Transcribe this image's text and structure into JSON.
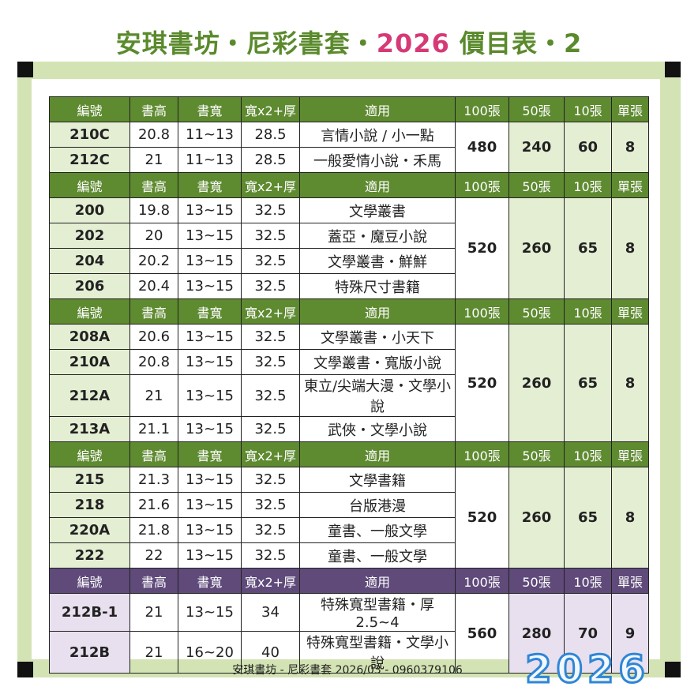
{
  "title": {
    "part1": "安琪書坊・尼彩書套・",
    "year": "2026",
    "part2": " 價目表・2"
  },
  "headers": [
    "編號",
    "書高",
    "書寬",
    "寬x2+厚",
    "適用",
    "100張",
    "50張",
    "10張",
    "單張"
  ],
  "groups": [
    {
      "theme": "green",
      "rows": [
        {
          "code": "210C",
          "h": "20.8",
          "w": "11~13",
          "wx": "28.5",
          "use": "言情小說 / 小一點"
        },
        {
          "code": "212C",
          "h": "21",
          "w": "11~13",
          "wx": "28.5",
          "use": "一般愛情小說・禾馬"
        }
      ],
      "p100": "480",
      "p50": "240",
      "p10": "60",
      "p1": "8"
    },
    {
      "theme": "green",
      "rows": [
        {
          "code": "200",
          "h": "19.8",
          "w": "13~15",
          "wx": "32.5",
          "use": "文學叢書"
        },
        {
          "code": "202",
          "h": "20",
          "w": "13~15",
          "wx": "32.5",
          "use": "蓋亞・魔豆小說"
        },
        {
          "code": "204",
          "h": "20.2",
          "w": "13~15",
          "wx": "32.5",
          "use": "文學叢書・鮮鮮"
        },
        {
          "code": "206",
          "h": "20.4",
          "w": "13~15",
          "wx": "32.5",
          "use": "特殊尺寸書籍"
        }
      ],
      "p100": "520",
      "p50": "260",
      "p10": "65",
      "p1": "8"
    },
    {
      "theme": "green",
      "rows": [
        {
          "code": "208A",
          "h": "20.6",
          "w": "13~15",
          "wx": "32.5",
          "use": "文學叢書・小天下"
        },
        {
          "code": "210A",
          "h": "20.8",
          "w": "13~15",
          "wx": "32.5",
          "use": "文學叢書・寬版小說"
        },
        {
          "code": "212A",
          "h": "21",
          "w": "13~15",
          "wx": "32.5",
          "use": "東立/尖端大漫・文學小說"
        },
        {
          "code": "213A",
          "h": "21.1",
          "w": "13~15",
          "wx": "32.5",
          "use": "武俠・文學小說"
        }
      ],
      "p100": "520",
      "p50": "260",
      "p10": "65",
      "p1": "8"
    },
    {
      "theme": "green",
      "rows": [
        {
          "code": "215",
          "h": "21.3",
          "w": "13~15",
          "wx": "32.5",
          "use": "文學書籍"
        },
        {
          "code": "218",
          "h": "21.6",
          "w": "13~15",
          "wx": "32.5",
          "use": "台版港漫"
        },
        {
          "code": "220A",
          "h": "21.8",
          "w": "13~15",
          "wx": "32.5",
          "use": "童書、一般文學"
        },
        {
          "code": "222",
          "h": "22",
          "w": "13~15",
          "wx": "32.5",
          "use": "童書、一般文學"
        }
      ],
      "p100": "520",
      "p50": "260",
      "p10": "65",
      "p1": "8"
    },
    {
      "theme": "purple",
      "rows": [
        {
          "code": "212B-1",
          "h": "21",
          "w": "13~15",
          "wx": "34",
          "use": "特殊寬型書籍・厚2.5~4"
        },
        {
          "code": "212B",
          "h": "21",
          "w": "16~20",
          "wx": "40",
          "use": "特殊寬型書籍・文學小說"
        }
      ],
      "p100": "560",
      "p50": "280",
      "p10": "70",
      "p1": "9"
    }
  ],
  "footer": "安琪書坊 - 尼彩書套 2026/03 - 0960379106",
  "deco_text": "2026",
  "colors": {
    "green": "#5e8a30",
    "purple": "#5f4a7a",
    "red": "#c0142a",
    "blue": "#1b6cb5",
    "pink": "#d63a76"
  }
}
